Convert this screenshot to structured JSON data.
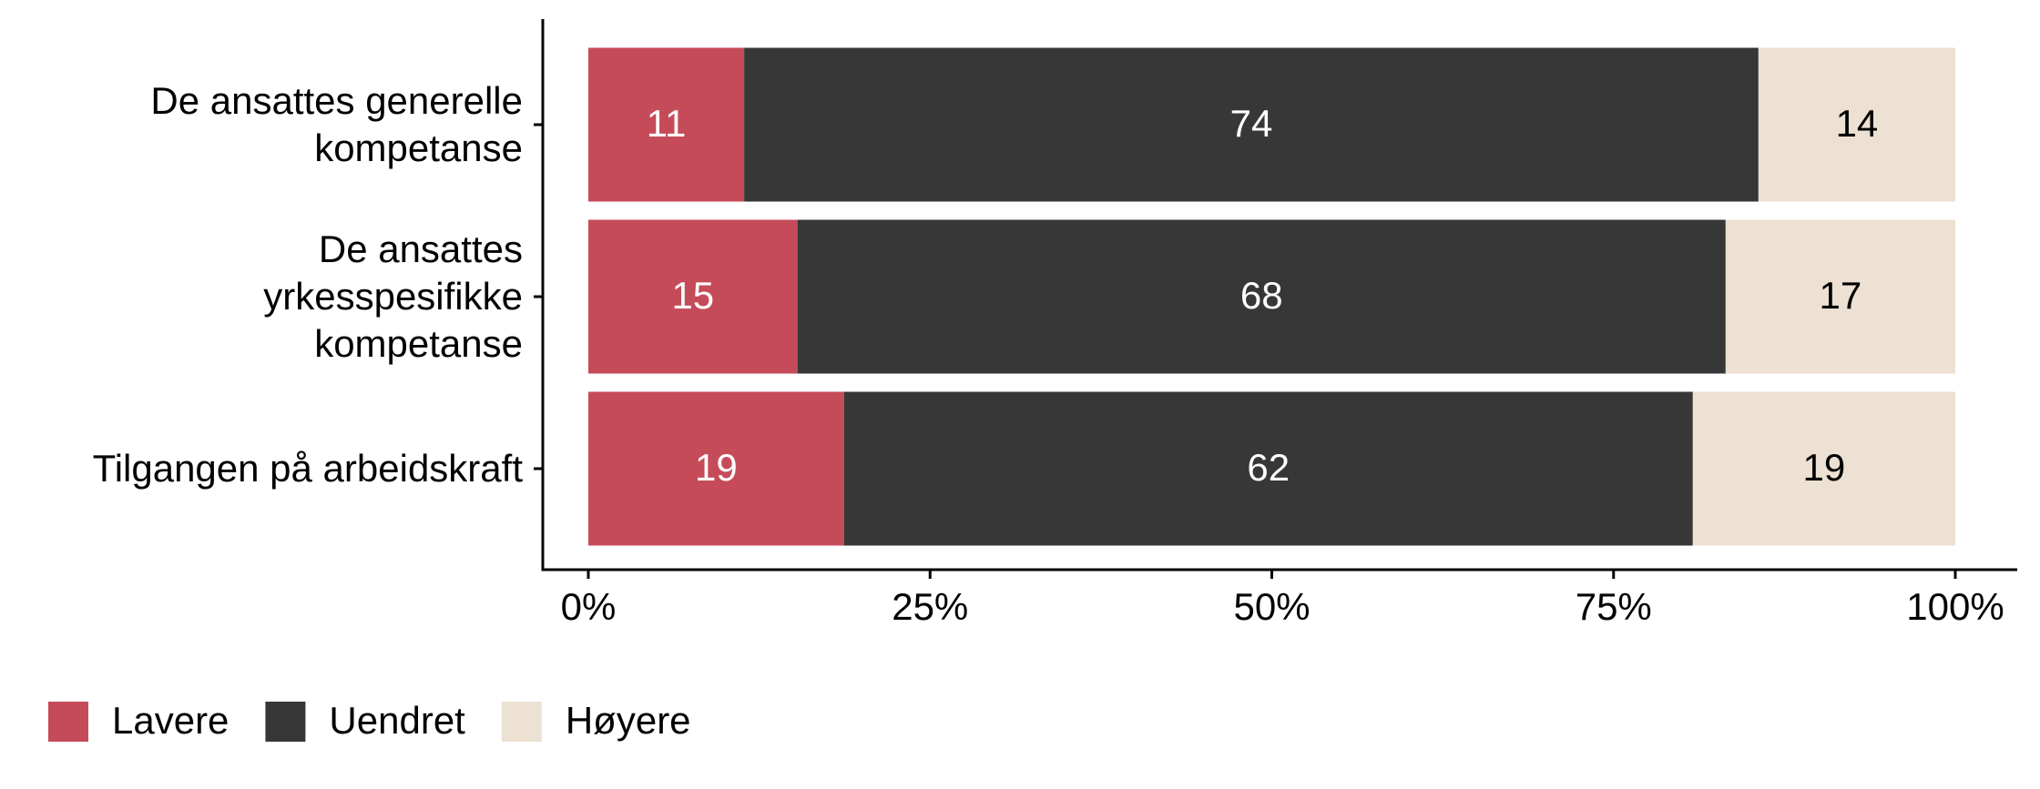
{
  "chart_data": {
    "type": "stacked-barh",
    "categories": [
      "De ansattes generelle\nkompetanse",
      "De ansattes\nyrkesspesifikke\nkompetanse",
      "Tilgangen på arbeidskraft"
    ],
    "series": [
      {
        "name": "Lavere",
        "color": "#c64b59",
        "values": [
          11.4,
          15.3,
          18.7
        ],
        "value_labels": [
          "11",
          "15",
          "19"
        ]
      },
      {
        "name": "Uendret",
        "color": "#373737",
        "values": [
          74.2,
          67.9,
          62.1
        ],
        "value_labels": [
          "74",
          "68",
          "62"
        ]
      },
      {
        "name": "Høyere",
        "color": "#ece1d2",
        "values": [
          14.4,
          16.8,
          19.2
        ],
        "value_labels": [
          "14",
          "17",
          "19"
        ]
      }
    ],
    "xlim": [
      0,
      100
    ],
    "xticks": [
      {
        "value": 0,
        "label": "0%"
      },
      {
        "value": 25,
        "label": "25%"
      },
      {
        "value": 50,
        "label": "50%"
      },
      {
        "value": 75,
        "label": "75%"
      },
      {
        "value": 100,
        "label": "100%"
      }
    ],
    "legend": "bottom-left"
  }
}
